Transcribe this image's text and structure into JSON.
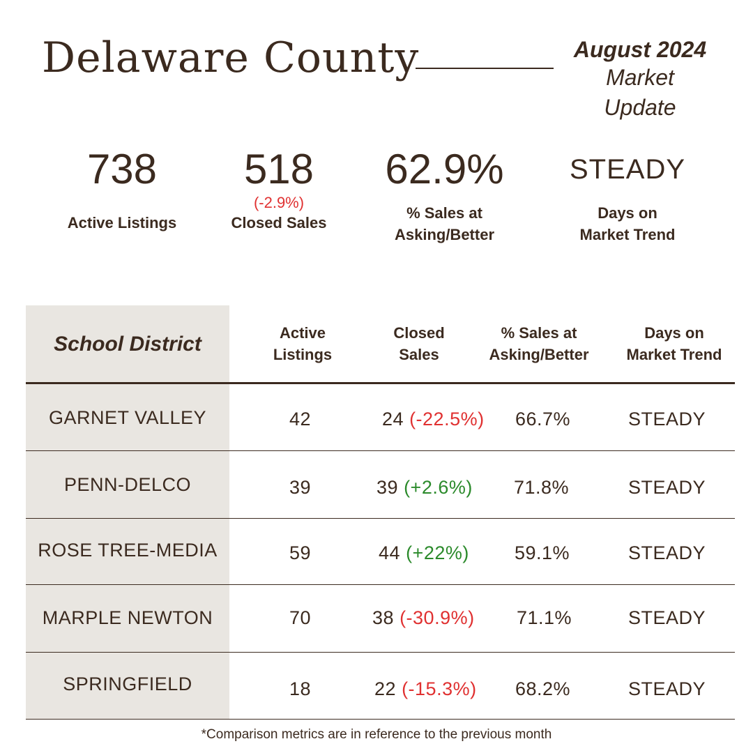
{
  "header": {
    "title": "Delaware County",
    "month": "August 2024",
    "sub1": "Market",
    "sub2": "Update"
  },
  "summary": {
    "active": {
      "value": "738",
      "label": "Active Listings"
    },
    "closed": {
      "value": "518",
      "change": "(-2.9%)",
      "label": "Closed Sales"
    },
    "asking": {
      "value": "62.9%",
      "label_line1": "% Sales at",
      "label_line2": "Asking/Better"
    },
    "dom": {
      "value": "STEADY",
      "label_line1": "Days on",
      "label_line2": "Market Trend"
    }
  },
  "table": {
    "headers": {
      "district": "School District",
      "active": "Active\nListings",
      "closed": "Closed\nSales",
      "asking": "% Sales at\nAsking/Better",
      "dom": "Days on\nMarket Trend"
    },
    "rows": [
      {
        "district": "GARNET VALLEY",
        "active": "42",
        "closed": "24",
        "change": "(-22.5%)",
        "trend": "neg",
        "asking": "66.7%",
        "dom": "STEADY"
      },
      {
        "district": "PENN-DELCO",
        "active": "39",
        "closed": "39",
        "change": "(+2.6%)",
        "trend": "pos",
        "asking": "71.8%",
        "dom": "STEADY"
      },
      {
        "district": "ROSE TREE-MEDIA",
        "active": "59",
        "closed": "44",
        "change": "(+22%)",
        "trend": "pos",
        "asking": "59.1%",
        "dom": "STEADY"
      },
      {
        "district": "MARPLE NEWTON",
        "active": "70",
        "closed": "38",
        "change": "(-30.9%)",
        "trend": "neg",
        "asking": "71.1%",
        "dom": "STEADY"
      },
      {
        "district": "SPRINGFIELD",
        "active": "18",
        "closed": "22",
        "change": "(-15.3%)",
        "trend": "neg",
        "asking": "68.2%",
        "dom": "STEADY"
      }
    ]
  },
  "colors": {
    "text": "#3b2a1f",
    "negative": "#e03131",
    "positive": "#2b8a2b",
    "column_bg": "#e9e6e1"
  },
  "footnote": "*Comparison metrics are in reference to the previous month"
}
